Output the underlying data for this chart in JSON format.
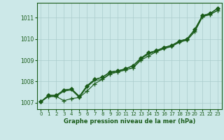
{
  "title": "Graphe pression niveau de la mer (hPa)",
  "bg_color": "#cce8e8",
  "line_color": "#1a5c1a",
  "grid_color": "#aacccc",
  "xlim": [
    -0.5,
    23.5
  ],
  "ylim": [
    1006.7,
    1011.7
  ],
  "yticks": [
    1007,
    1008,
    1009,
    1010,
    1011
  ],
  "xticks": [
    0,
    1,
    2,
    3,
    4,
    5,
    6,
    7,
    8,
    9,
    10,
    11,
    12,
    13,
    14,
    15,
    16,
    17,
    18,
    19,
    20,
    21,
    22,
    23
  ],
  "series": [
    [
      1007.05,
      1007.35,
      1007.35,
      1007.6,
      1007.65,
      1007.3,
      1007.8,
      1008.1,
      1008.2,
      1008.45,
      1008.5,
      1008.6,
      1008.75,
      1009.1,
      1009.35,
      1009.45,
      1009.6,
      1009.7,
      1009.9,
      1010.0,
      1010.45,
      1011.1,
      1011.2,
      1011.45
    ],
    [
      1007.05,
      1007.3,
      1007.3,
      1007.1,
      1007.2,
      1007.25,
      1007.55,
      1007.9,
      1008.1,
      1008.35,
      1008.45,
      1008.55,
      1008.65,
      1009.0,
      1009.2,
      1009.4,
      1009.55,
      1009.65,
      1009.85,
      1009.95,
      1010.35,
      1011.05,
      1011.15,
      1011.35
    ],
    [
      1007.05,
      1007.3,
      1007.3,
      1007.55,
      1007.6,
      1007.25,
      1007.75,
      1008.05,
      1008.1,
      1008.4,
      1008.45,
      1008.55,
      1008.65,
      1009.05,
      1009.3,
      1009.4,
      1009.55,
      1009.65,
      1009.85,
      1009.95,
      1010.35,
      1011.05,
      1011.15,
      1011.35
    ],
    [
      1007.05,
      1007.35,
      1007.35,
      1007.6,
      1007.65,
      1007.3,
      1007.8,
      1008.1,
      1008.2,
      1008.45,
      1008.5,
      1008.6,
      1008.75,
      1009.1,
      1009.35,
      1009.45,
      1009.6,
      1009.7,
      1009.9,
      1010.0,
      1010.45,
      1011.1,
      1011.2,
      1011.45
    ]
  ],
  "styles": [
    {
      "marker": "D",
      "ms": 2.5,
      "lw": 1.0,
      "ls": "-"
    },
    {
      "marker": "+",
      "ms": 4.0,
      "lw": 0.8,
      "ls": "-"
    },
    {
      "marker": null,
      "ms": 0,
      "lw": 0.8,
      "ls": "-"
    },
    {
      "marker": "D",
      "ms": 2.5,
      "lw": 0.8,
      "ls": "-"
    }
  ]
}
